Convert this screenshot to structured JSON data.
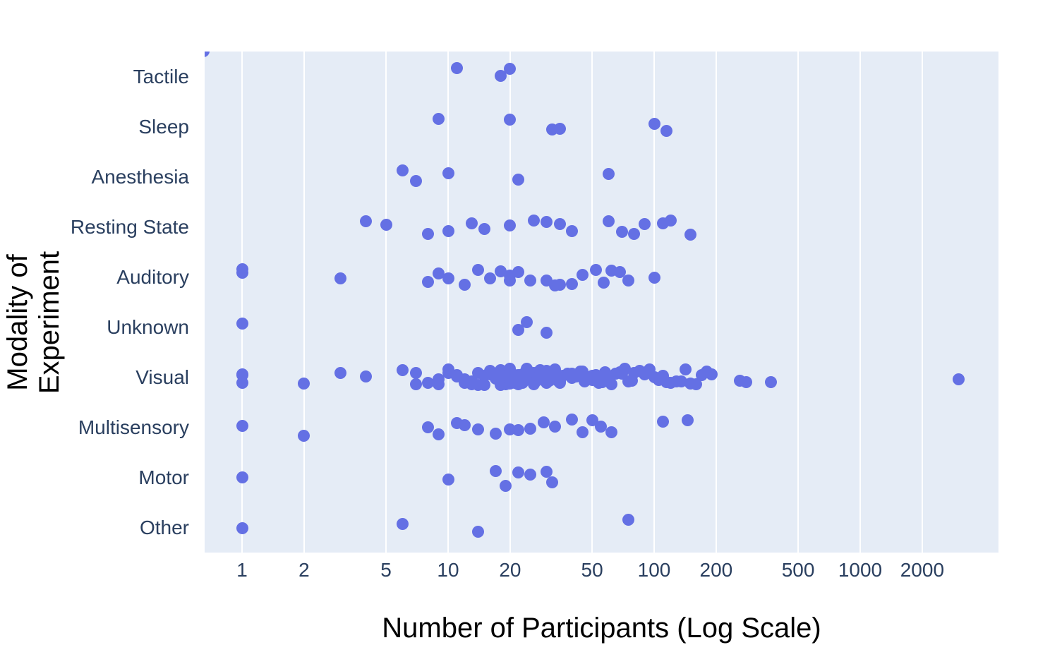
{
  "figure": {
    "xlabel": "Number of Participants (Log Scale)",
    "ylabel": "Modality of Experiment"
  },
  "chart_data": {
    "type": "scatter",
    "subtype": "strip",
    "title": "",
    "xlabel": "Number of Participants (Log Scale)",
    "ylabel": "Modality of Experiment",
    "x_scale": "log",
    "x_ticks": [
      1,
      2,
      5,
      10,
      20,
      50,
      100,
      200,
      500,
      1000,
      2000
    ],
    "xlim": [
      0.66,
      4700
    ],
    "grid": true,
    "legend": "none",
    "categories": [
      "Tactile",
      "Sleep",
      "Anesthesia",
      "Resting State",
      "Auditory",
      "Unknown",
      "Visual",
      "Multisensory",
      "Motor",
      "Other"
    ],
    "rows": [
      {
        "label": "Tactile",
        "values": [
          11,
          18,
          20
        ]
      },
      {
        "label": "Sleep",
        "values": [
          9,
          20,
          32,
          35,
          100,
          115
        ]
      },
      {
        "label": "Anesthesia",
        "values": [
          6,
          7,
          10,
          22,
          60
        ]
      },
      {
        "label": "Resting State",
        "values": [
          4,
          5,
          8,
          10,
          13,
          15,
          20,
          26,
          30,
          35,
          40,
          60,
          70,
          80,
          90,
          110,
          120,
          150
        ]
      },
      {
        "label": "Auditory",
        "values": [
          1,
          1,
          3,
          8,
          9,
          10,
          12,
          14,
          16,
          18,
          20,
          20,
          22,
          25,
          30,
          33,
          35,
          40,
          45,
          52,
          57,
          62,
          68,
          75,
          100
        ]
      },
      {
        "label": "Unknown",
        "values": [
          1,
          22,
          24,
          30
        ]
      },
      {
        "label": "Visual",
        "values": [
          1,
          1,
          1,
          2,
          3,
          4,
          6,
          7,
          7,
          8,
          9,
          9,
          10,
          10,
          11,
          11,
          12,
          12,
          13,
          13,
          14,
          14,
          15,
          15,
          16,
          16,
          17,
          17,
          18,
          18,
          18,
          19,
          19,
          20,
          20,
          20,
          20,
          21,
          21,
          22,
          22,
          23,
          23,
          24,
          24,
          25,
          25,
          26,
          26,
          27,
          28,
          28,
          29,
          30,
          30,
          31,
          32,
          33,
          34,
          35,
          35,
          36,
          38,
          40,
          40,
          42,
          44,
          45,
          46,
          48,
          50,
          50,
          52,
          54,
          56,
          58,
          60,
          62,
          65,
          68,
          70,
          72,
          75,
          78,
          80,
          85,
          90,
          95,
          100,
          105,
          110,
          115,
          120,
          128,
          135,
          142,
          150,
          160,
          170,
          180,
          190,
          260,
          280,
          370,
          3000
        ]
      },
      {
        "label": "Multisensory",
        "values": [
          1,
          2,
          8,
          9,
          11,
          12,
          14,
          17,
          20,
          22,
          25,
          29,
          33,
          40,
          45,
          50,
          55,
          62,
          110,
          145
        ]
      },
      {
        "label": "Motor",
        "values": [
          1,
          10,
          17,
          19,
          22,
          25,
          30,
          32
        ]
      },
      {
        "label": "Other",
        "values": [
          1,
          6,
          14,
          75
        ]
      }
    ],
    "corner_marker": {
      "category": "Tactile",
      "value": 0.65,
      "note": "marker clipped at top-left plot corner"
    },
    "colors": {
      "marker": "#6470E4",
      "plot_background": "#E5ECF6",
      "gridline": "#FFFFFF",
      "tick_label": "#2A3F5F",
      "axis_title": "#000000",
      "page_background": "#FFFFFF"
    }
  }
}
